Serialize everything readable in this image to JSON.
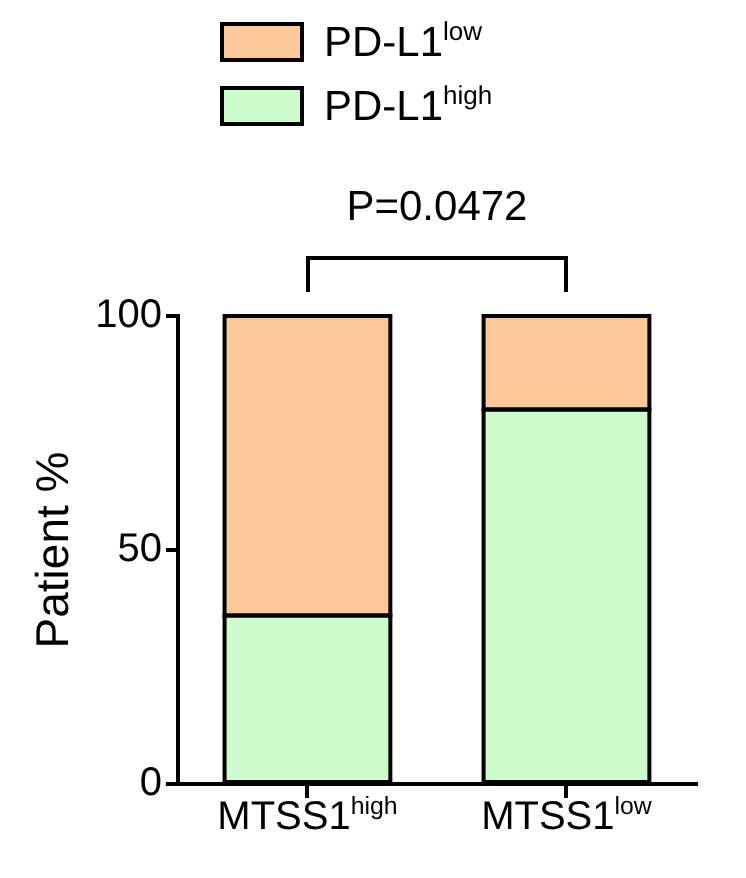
{
  "chart_data": {
    "type": "bar",
    "stacked": true,
    "ylabel": "Patient %",
    "categories": [
      "MTSS1$^{high}$",
      "MTSS1$^{low}$"
    ],
    "series": [
      {
        "name": "PD-L1$^{high}$",
        "color": "#ccfccc",
        "values": [
          36,
          80
        ]
      },
      {
        "name": "PD-L1$^{low}$",
        "color": "#fdc898",
        "values": [
          64,
          20
        ]
      }
    ],
    "ylim": [
      0,
      100
    ],
    "yticks": [
      0,
      50,
      100
    ],
    "grid": false,
    "legend": "top",
    "annotations": [
      "P=0.0472"
    ]
  }
}
